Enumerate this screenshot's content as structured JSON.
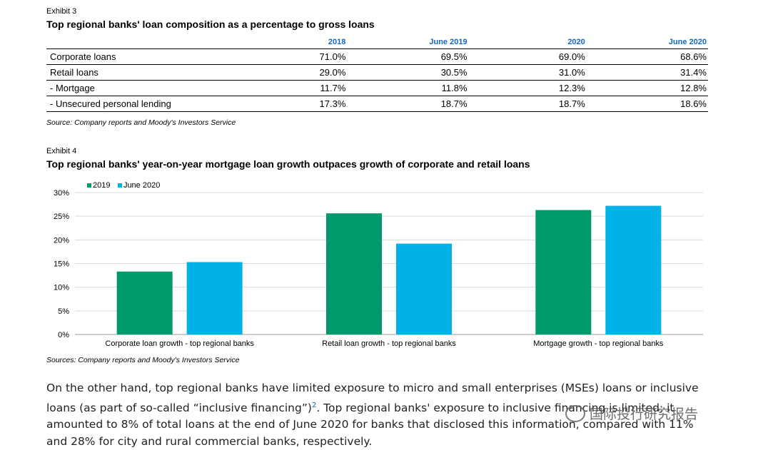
{
  "exhibit3": {
    "label": "Exhibit 3",
    "title": "Top regional banks' loan composition as a percentage to gross loans",
    "columns": [
      "",
      "2018",
      "June 2019",
      "2020",
      "June 2020"
    ],
    "rows": [
      [
        "Corporate loans",
        "71.0%",
        "69.5%",
        "69.0%",
        "68.6%"
      ],
      [
        "Retail loans",
        "29.0%",
        "30.5%",
        "31.0%",
        "31.4%"
      ],
      [
        "-  Mortgage",
        "11.7%",
        "11.8%",
        "12.3%",
        "12.8%"
      ],
      [
        "-  Unsecured personal lending",
        "17.3%",
        "18.7%",
        "18.7%",
        "18.6%"
      ]
    ],
    "source": "Source: Company reports and Moody's Investors Service"
  },
  "exhibit4": {
    "label": "Exhibit 4",
    "source": "Sources: Company reports and Moody's Investors Service"
  },
  "chart_data": {
    "type": "bar",
    "title": "Top regional banks' year-on-year mortgage loan growth outpaces growth of corporate and retail loans",
    "categories": [
      "Corporate loan growth - top regional banks",
      "Retail loan growth - top regional banks",
      "Mortgage growth - top regional banks"
    ],
    "series": [
      {
        "name": "2019",
        "color": "#00996b",
        "values": [
          13.3,
          25.6,
          26.3
        ]
      },
      {
        "name": "June 2020",
        "color": "#00b2e8",
        "values": [
          15.3,
          19.2,
          27.2
        ]
      }
    ],
    "ylim": [
      0,
      30
    ],
    "yticks": [
      "0%",
      "5%",
      "10%",
      "15%",
      "20%",
      "25%",
      "30%"
    ],
    "grid": true,
    "legend": "top-left"
  },
  "paragraph": {
    "part1": "On the other hand, top regional banks have limited exposure to micro and small enterprises (MSEs) loans or inclusive loans (as part of so-called “inclusive financing”)",
    "footnote": "2",
    "part2": ". Top regional banks' exposure to inclusive financing is limited; it amounted to 8% of total loans at the end of June 2020 for banks that disclosed this information, compared with 11% and 28% for city and rural commercial banks, respectively."
  },
  "watermark": {
    "text": "国际投行研究报告",
    "icon": "wechat-logo-icon"
  }
}
